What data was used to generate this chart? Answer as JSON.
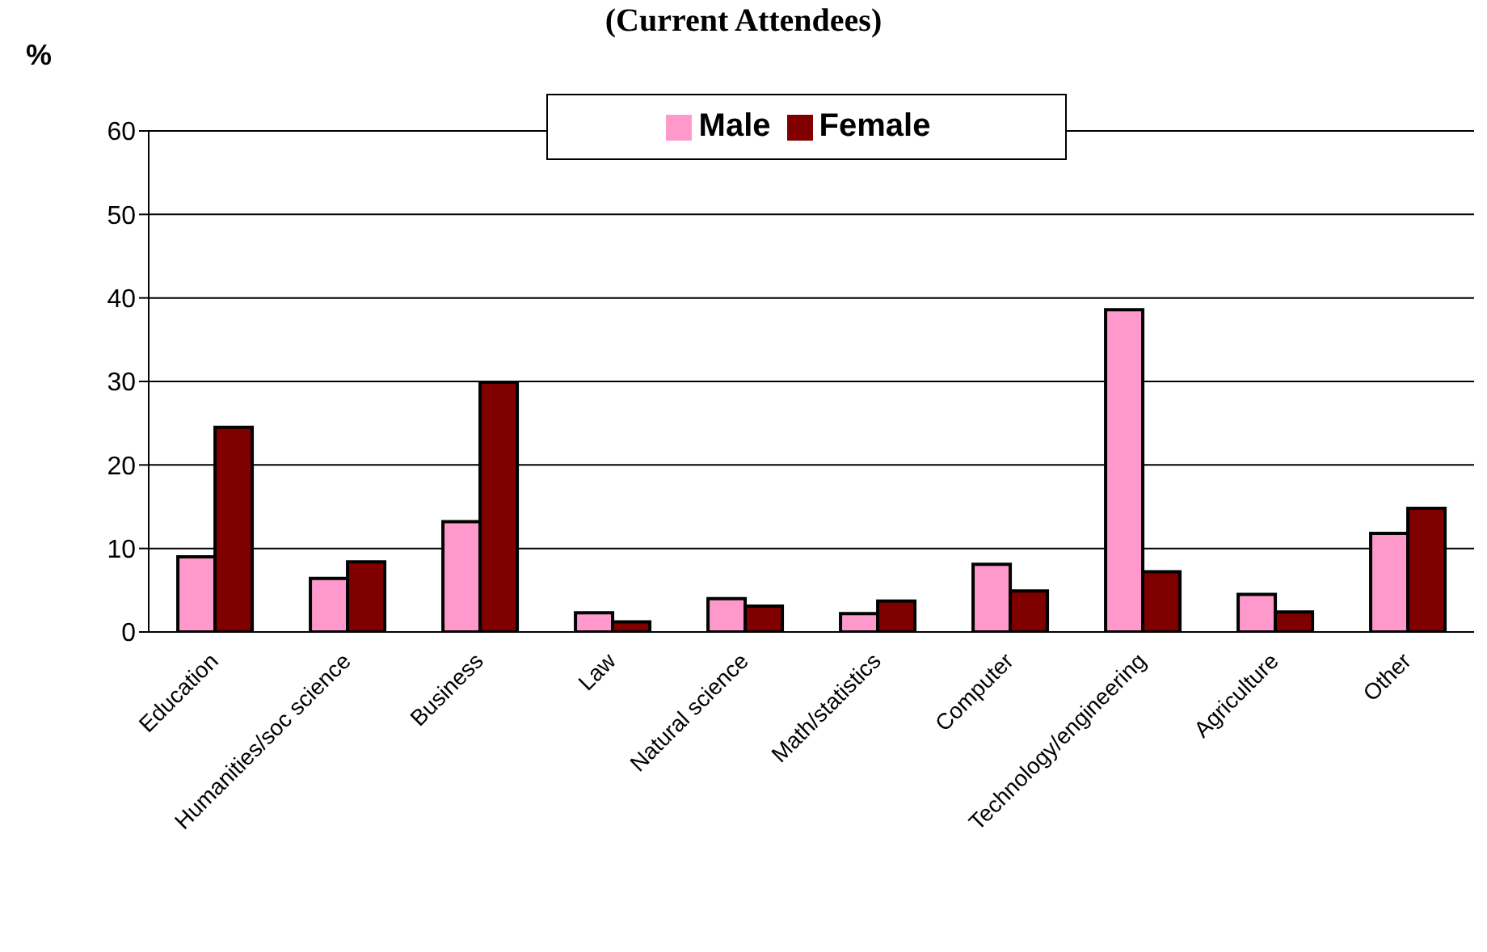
{
  "chart_data": {
    "type": "bar",
    "title": "(Current Attendees)",
    "ylabel": "%",
    "categories": [
      "Education",
      "Humanities/soc science",
      "Business",
      "Law",
      "Natural science",
      "Math/statistics",
      "Computer",
      "Technology/engineering",
      "Agriculture",
      "Other"
    ],
    "series": [
      {
        "name": "Male",
        "color": "#ff99cc",
        "values": [
          9.0,
          6.4,
          13.2,
          2.3,
          4.0,
          2.2,
          8.1,
          38.6,
          4.5,
          11.8
        ]
      },
      {
        "name": "Female",
        "color": "#800000",
        "values": [
          24.5,
          8.4,
          29.9,
          1.2,
          3.1,
          3.7,
          4.9,
          7.2,
          2.4,
          14.8
        ]
      }
    ],
    "ylim": [
      0,
      60
    ],
    "yticks": [
      0,
      10,
      20,
      30,
      40,
      50,
      60
    ],
    "grid": "y",
    "legend": "top"
  }
}
